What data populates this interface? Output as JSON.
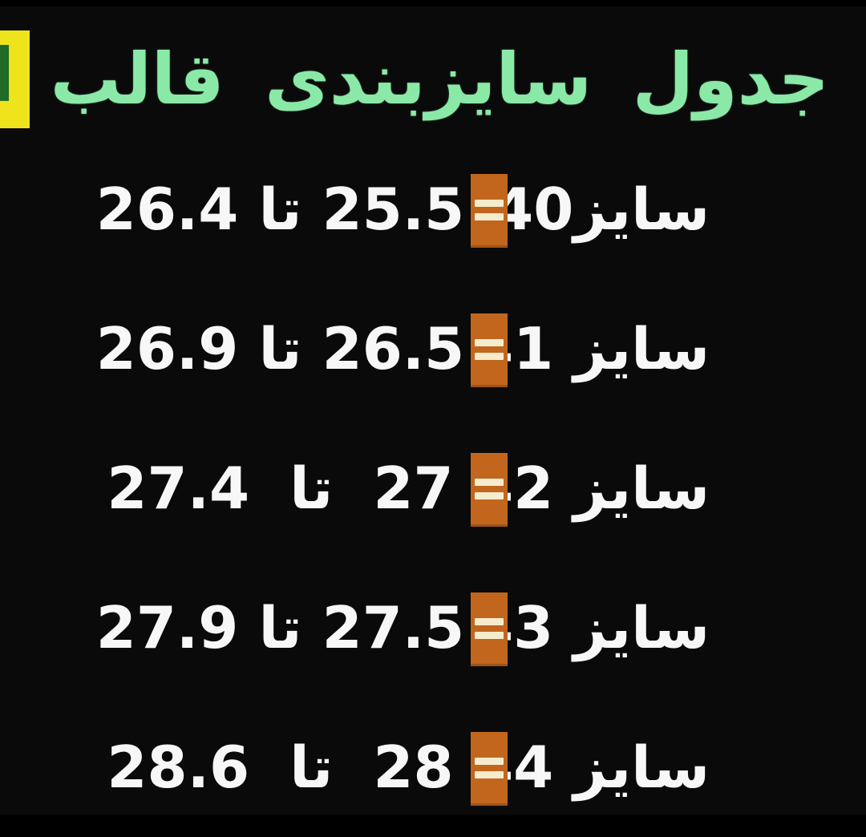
{
  "title": {
    "prefix": "جدول سایزبندی قالب",
    "highlight": "استاندارد"
  },
  "table": {
    "rows": [
      {
        "size_label": "سایز40",
        "range_label": "25.5 تا 26.4"
      },
      {
        "size_label": "سایز 41",
        "range_label": "26.5 تا 26.9"
      },
      {
        "size_label": "سایز 42",
        "range_label": "27  تا  27.4"
      },
      {
        "size_label": "سایز 43",
        "range_label": "27.5 تا 27.9"
      },
      {
        "size_label": "سایز 44",
        "range_label": "28  تا  28.6"
      }
    ]
  },
  "icons": {
    "equals": "equals-icon"
  },
  "colors": {
    "background": "#0a0a0a",
    "title_green": "#8be9a8",
    "highlight_yellow": "#efe41c",
    "highlight_text_green": "#1e6b28",
    "row_text_white": "#f7f7f7",
    "equals_box_orange": "#c2661e",
    "equals_bars_cream": "#f5ecce"
  },
  "chart_data": {
    "type": "table",
    "title": "جدول سایزبندی قالب استاندارد",
    "rows": [
      {
        "size": 40,
        "min": 25.5,
        "max": 26.4
      },
      {
        "size": 41,
        "min": 26.5,
        "max": 26.9
      },
      {
        "size": 42,
        "min": 27.0,
        "max": 27.4
      },
      {
        "size": 43,
        "min": 27.5,
        "max": 27.9
      },
      {
        "size": 44,
        "min": 28.0,
        "max": 28.6
      }
    ]
  }
}
